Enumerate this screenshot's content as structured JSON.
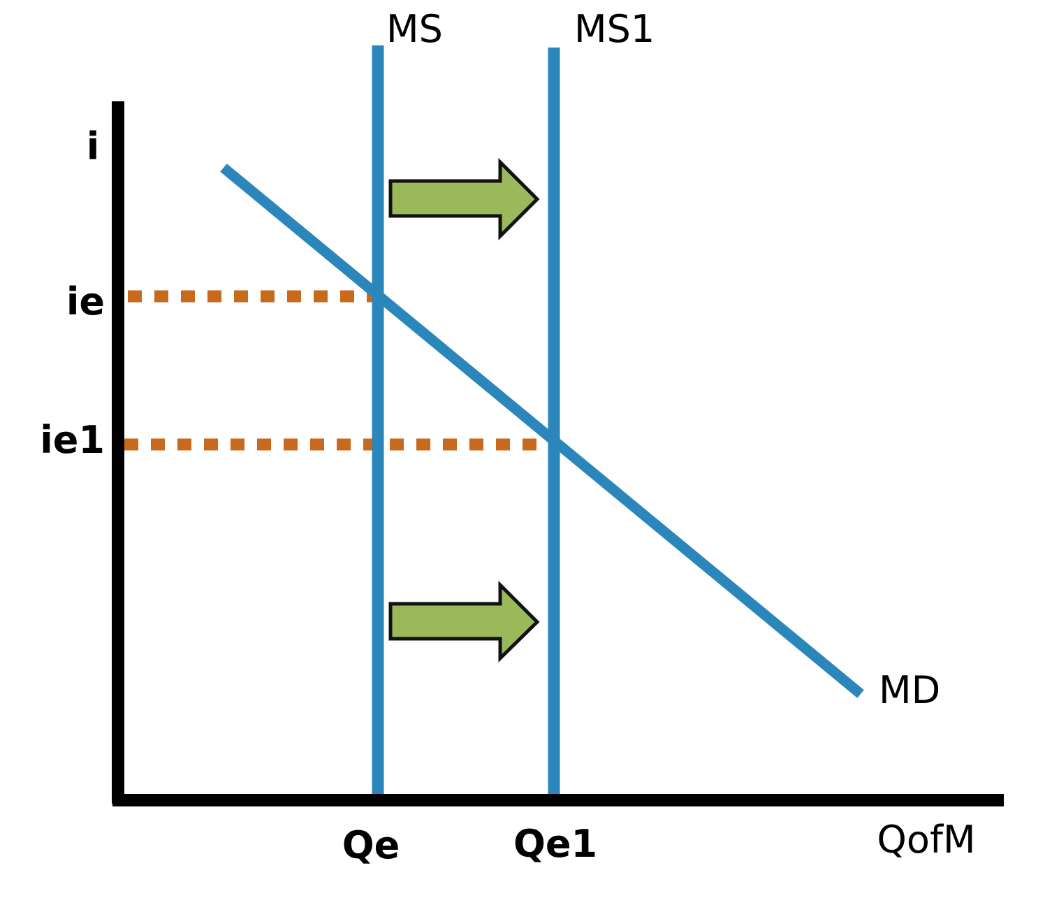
{
  "labels": {
    "y_axis": "i",
    "x_axis": "QofM",
    "ie": "ie",
    "ie1": "ie1",
    "qe": "Qe",
    "qe1": "Qe1",
    "ms": "MS",
    "ms1": "MS1",
    "md": "MD"
  },
  "colors": {
    "axis": "#000000",
    "curve": "#2a86bb",
    "guide": "#c76a1c",
    "arrow_fill": "#9bb85a",
    "arrow_stroke": "#111111",
    "background": "#ffffff"
  }
}
